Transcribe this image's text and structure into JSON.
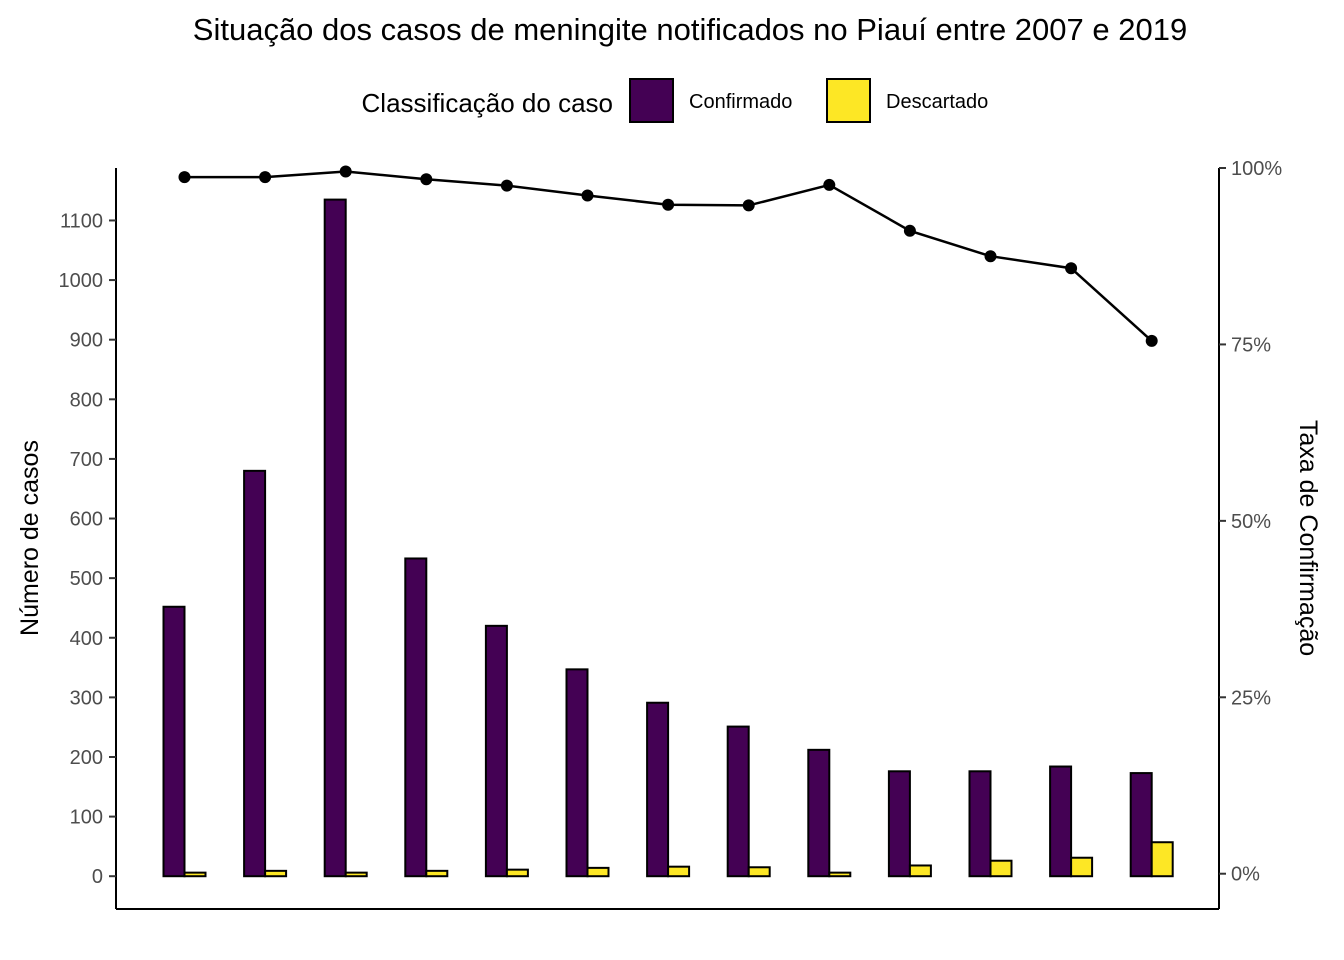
{
  "chart_data": {
    "type": "bar",
    "title": "Situação dos casos de meningite notificados no Piauí entre 2007 e 2019",
    "legend": {
      "title": "Classificação do caso",
      "position": "top",
      "entries": [
        {
          "label": "Confirmado",
          "color": "#440154"
        },
        {
          "label": "Descartado",
          "color": "#FDE725"
        }
      ]
    },
    "ylabel": "Número de casos",
    "y2label": "Taxa de Confirmação",
    "ylim": [
      -55,
      1188
    ],
    "yticks": [
      0,
      100,
      200,
      300,
      400,
      500,
      600,
      700,
      800,
      900,
      1000,
      1100
    ],
    "y2lim": [
      -0.05,
      1.0
    ],
    "y2ticks": [
      {
        "value": 0,
        "label": "0%"
      },
      {
        "value": 0.25,
        "label": "25%"
      },
      {
        "value": 0.5,
        "label": "50%"
      },
      {
        "value": 0.75,
        "label": "75%"
      },
      {
        "value": 1.0,
        "label": "100%"
      }
    ],
    "grid": false,
    "categories_count": 13,
    "series": [
      {
        "name": "Confirmado",
        "color": "#440154",
        "values": [
          452,
          680,
          1135,
          533,
          420,
          347,
          291,
          251,
          212,
          176,
          176,
          184,
          173
        ]
      },
      {
        "name": "Descartado",
        "color": "#FDE725",
        "values": [
          6,
          9,
          6,
          9,
          11,
          14,
          16,
          15,
          6,
          18,
          26,
          31,
          57
        ]
      }
    ],
    "line": {
      "name": "Taxa de Confirmação",
      "color": "#000000",
      "values": [
        0.987,
        0.987,
        0.995,
        0.984,
        0.975,
        0.961,
        0.948,
        0.947,
        0.976,
        0.911,
        0.875,
        0.858,
        0.755
      ]
    }
  }
}
